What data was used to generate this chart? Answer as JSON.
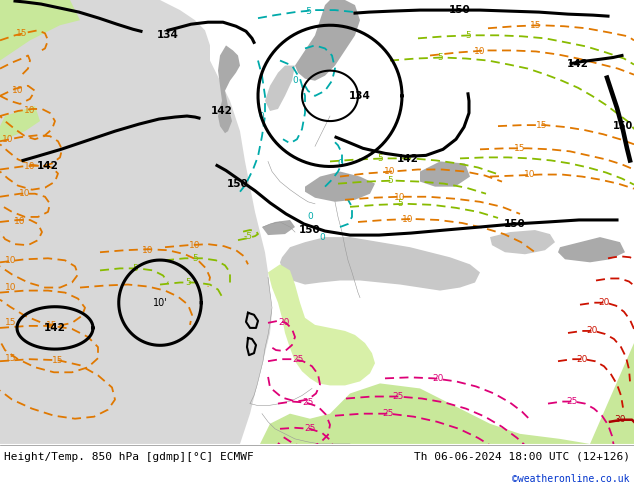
{
  "title_left": "Height/Temp. 850 hPa [gdmp][°C] ECMWF",
  "title_right": "Th 06-06-2024 18:00 UTC (12+126)",
  "credit": "©weatheronline.co.uk",
  "bg_ocean": "#d8d8d8",
  "bg_land": "#c8e89a",
  "bg_mountain": "#aaaaaa",
  "bg_land2": "#d8f0a8",
  "black": "#000000",
  "orange": "#e07800",
  "cyan": "#00aaaa",
  "green": "#88bb00",
  "pink": "#dd0077",
  "red": "#cc1100",
  "fig_width": 6.34,
  "fig_height": 4.9,
  "dpi": 100,
  "credit_color": "#0033cc"
}
